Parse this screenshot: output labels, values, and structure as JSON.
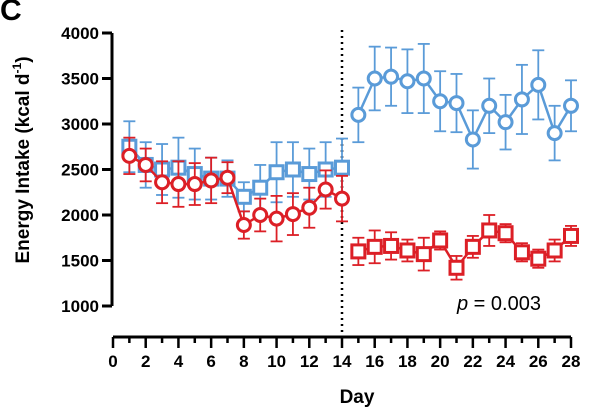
{
  "panel_label": "C",
  "chart_data": {
    "type": "line",
    "xlabel": "Day",
    "ylabel": "Energy Intake (kcal d",
    "ylabel_sup": "-1",
    "ylabel_close": ")",
    "xlim": [
      0,
      28
    ],
    "ylim": [
      1000,
      4000
    ],
    "x_ticks": [
      0,
      2,
      4,
      6,
      8,
      10,
      12,
      14,
      16,
      18,
      20,
      22,
      24,
      26,
      28
    ],
    "x_tick_labels": [
      "0",
      "2",
      "4",
      "6",
      "8",
      "10",
      "12",
      "14",
      "16",
      "18",
      "20",
      "22",
      "24",
      "26",
      "28"
    ],
    "y_ticks": [
      1000,
      1500,
      2000,
      2500,
      3000,
      3500,
      4000
    ],
    "y_tick_labels": [
      "1000",
      "1500",
      "2000",
      "2500",
      "3000",
      "3500",
      "4000"
    ],
    "grid": false,
    "vline_x": 14,
    "annotation": {
      "p_symbol": "p",
      "text": " = 0.003"
    },
    "series": [
      {
        "color": "#5a9bd8",
        "segments": [
          {
            "marker": "square",
            "x": [
              1,
              2,
              3,
              4,
              5,
              6,
              7,
              8,
              9,
              10,
              11,
              12,
              13,
              14
            ],
            "y": [
              2750,
              2550,
              2500,
              2520,
              2450,
              2400,
              2400,
              2200,
              2300,
              2470,
              2500,
              2450,
              2500,
              2520
            ],
            "err": [
              280,
              250,
              280,
              330,
              280,
              230,
              200,
              160,
              250,
              330,
              300,
              280,
              300,
              320
            ]
          },
          {
            "marker": "circle",
            "x": [
              15,
              16,
              17,
              18,
              19,
              20,
              21,
              22,
              23,
              24,
              25,
              26,
              27,
              28
            ],
            "y": [
              3100,
              3500,
              3520,
              3470,
              3500,
              3250,
              3230,
              2830,
              3200,
              3020,
              3270,
              3430,
              2900,
              3200
            ],
            "err": [
              300,
              350,
              320,
              350,
              380,
              330,
              320,
              320,
              300,
              300,
              380,
              380,
              300,
              280
            ]
          }
        ]
      },
      {
        "color": "#dc1f26",
        "segments": [
          {
            "marker": "circle",
            "x": [
              1,
              2,
              3,
              4,
              5,
              6,
              7,
              8,
              9,
              10,
              11,
              12,
              13,
              14
            ],
            "y": [
              2650,
              2550,
              2360,
              2340,
              2340,
              2380,
              2410,
              1890,
              2000,
              1960,
              2010,
              2080,
              2280,
              2180
            ],
            "err": [
              200,
              180,
              230,
              250,
              230,
              250,
              170,
              150,
              180,
              250,
              230,
              220,
              210,
              250
            ]
          },
          {
            "marker": "square",
            "x": [
              15,
              16,
              17,
              18,
              19,
              20,
              21,
              22,
              23,
              24,
              25,
              26,
              27,
              28
            ],
            "y": [
              1600,
              1650,
              1660,
              1610,
              1570,
              1720,
              1420,
              1650,
              1830,
              1800,
              1590,
              1520,
              1610,
              1770
            ],
            "err": [
              150,
              180,
              150,
              120,
              180,
              100,
              130,
              120,
              170,
              100,
              100,
              100,
              120,
              110
            ]
          }
        ]
      }
    ]
  }
}
